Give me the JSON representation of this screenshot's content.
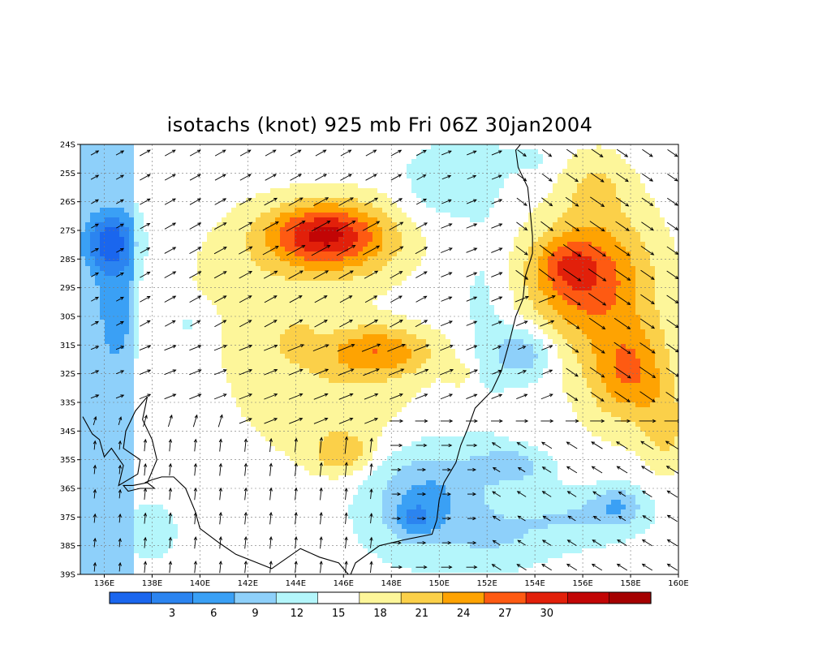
{
  "title": "isotachs (knot) 925 mb Fri 06Z 30jan2004",
  "lat_labels": [
    "24S",
    "25S",
    "26S",
    "27S",
    "28S",
    "29S",
    "30S",
    "31S",
    "32S",
    "33S",
    "34S",
    "35S",
    "36S",
    "37S",
    "38S",
    "39S"
  ],
  "lon_labels": [
    "136E",
    "138E",
    "140E",
    "142E",
    "144E",
    "146E",
    "148E",
    "150E",
    "152E",
    "154E",
    "156E",
    "158E",
    "160E"
  ],
  "colorbar": {
    "colors": [
      "#1a66ee",
      "#2b84f0",
      "#3aa0f5",
      "#8ed0fa",
      "#b4f6fb",
      "#ffffff",
      "#fdf69a",
      "#fbd049",
      "#fea302",
      "#fe5a12",
      "#e2200a",
      "#c20505",
      "#a50000"
    ],
    "labels": [
      "3",
      "6",
      "9",
      "12",
      "15",
      "18",
      "21",
      "24",
      "27",
      "30"
    ]
  },
  "colors": {
    "coast": "#000000",
    "grid": "#777777",
    "arrow": "#000000"
  }
}
